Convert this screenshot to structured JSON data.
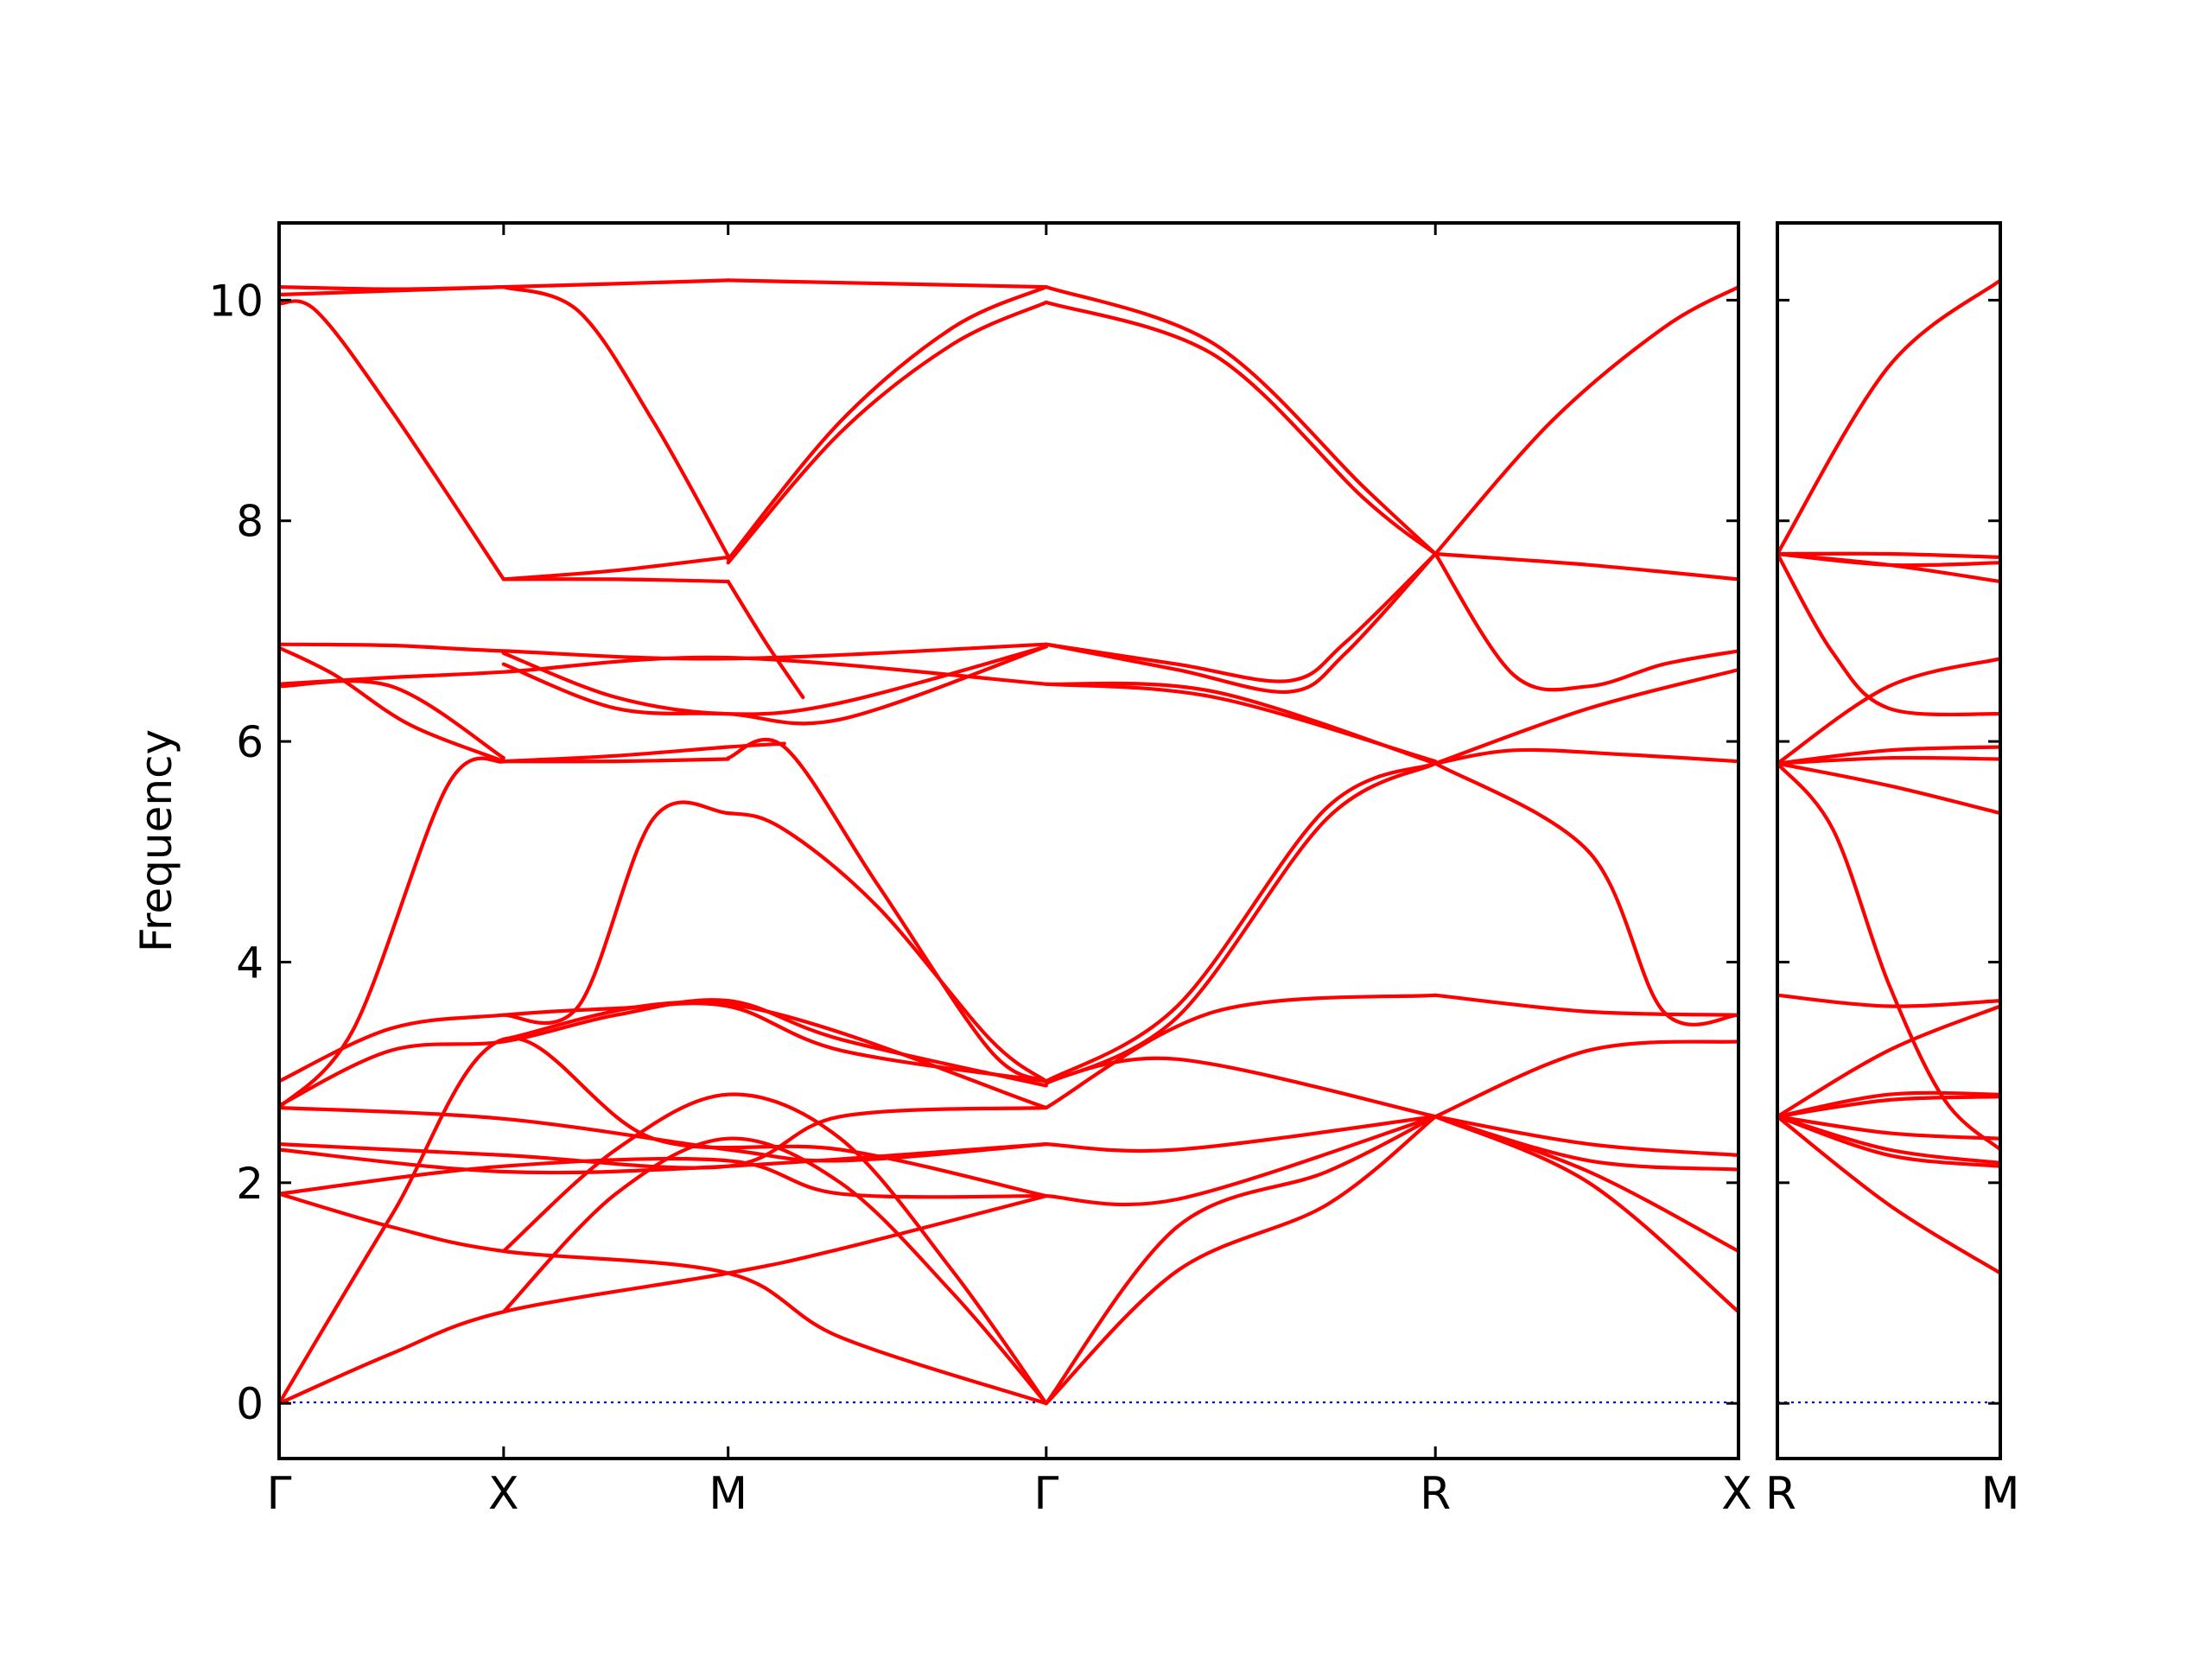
{
  "chart_data": {
    "type": "line",
    "ylabel": "Frequency",
    "ylim": [
      -0.5,
      10.7
    ],
    "yticks": [
      0,
      2,
      4,
      6,
      8,
      10
    ],
    "ytick_labels": [
      "0",
      "2",
      "4",
      "6",
      "8",
      "10"
    ],
    "grid": false,
    "legend": "none",
    "colors": {
      "bands": "#ff0000",
      "zero_line": "#0000cc",
      "axes": "#000000"
    },
    "panels": [
      {
        "name": "Γ-X-M-Γ-R-X",
        "xlim": [
          0,
          3.9
        ],
        "high_symmetry_points": [
          {
            "label": "Γ",
            "x": 0
          },
          {
            "label": "X",
            "x": 0.6
          },
          {
            "label": "M",
            "x": 1.2
          },
          {
            "label": "Γ",
            "x": 2.05
          },
          {
            "label": "R",
            "x": 3.09
          },
          {
            "label": "X",
            "x": 3.9
          }
        ],
        "bands": [
          {
            "x": [
              0,
              0.3,
              0.6,
              1.2
            ],
            "y": [
              10.12,
              10.1,
              10.12,
              10.18
            ]
          },
          {
            "x": [
              1.2,
              2.05
            ],
            "y": [
              10.18,
              10.12
            ]
          },
          {
            "x": [
              0,
              0.6
            ],
            "y": [
              10.05,
              10.12
            ]
          },
          {
            "x": [
              0,
              0.1,
              0.3,
              0.6
            ],
            "y": [
              9.97,
              9.9,
              9.0,
              7.47
            ]
          },
          {
            "x": [
              0.6,
              0.8,
              1.0,
              1.2
            ],
            "y": [
              10.12,
              9.9,
              8.9,
              7.68
            ]
          },
          {
            "x": [
              1.2,
              1.5,
              1.8,
              2.05
            ],
            "y": [
              7.65,
              8.9,
              9.75,
              10.12
            ]
          },
          {
            "x": [
              1.2,
              1.5,
              1.8,
              2.05
            ],
            "y": [
              7.62,
              8.8,
              9.6,
              9.98
            ]
          },
          {
            "x": [
              2.05,
              2.5,
              2.9,
              3.09
            ],
            "y": [
              10.12,
              9.6,
              8.3,
              7.7
            ]
          },
          {
            "x": [
              2.05,
              2.5,
              2.9,
              3.09
            ],
            "y": [
              9.98,
              9.5,
              8.2,
              7.7
            ]
          },
          {
            "x": [
              3.09,
              3.4,
              3.7,
              3.9
            ],
            "y": [
              7.7,
              8.9,
              9.75,
              10.12
            ]
          },
          {
            "x": [
              0.6,
              0.9,
              1.2
            ],
            "y": [
              7.47,
              7.55,
              7.67
            ]
          },
          {
            "x": [
              0.6,
              0.9,
              1.2
            ],
            "y": [
              7.47,
              7.47,
              7.45
            ]
          },
          {
            "x": [
              3.09,
              3.5,
              3.9
            ],
            "y": [
              7.7,
              7.6,
              7.47
            ]
          },
          {
            "x": [
              3.09,
              3.3,
              3.5,
              3.7,
              3.9
            ],
            "y": [
              7.7,
              6.6,
              6.5,
              6.7,
              6.82
            ]
          },
          {
            "x": [
              1.2,
              1.3,
              1.4
            ],
            "y": [
              7.45,
              6.9,
              6.4
            ]
          },
          {
            "x": [
              0,
              0.3,
              0.6,
              1.2,
              2.05
            ],
            "y": [
              6.88,
              6.87,
              6.82,
              6.75,
              6.88
            ]
          },
          {
            "x": [
              2.05,
              2.4,
              2.7,
              2.85,
              3.09
            ],
            "y": [
              6.88,
              6.7,
              6.55,
              6.9,
              7.7
            ]
          },
          {
            "x": [
              2.05,
              2.4,
              2.7,
              2.85,
              3.09
            ],
            "y": [
              6.88,
              6.65,
              6.45,
              6.8,
              7.7
            ]
          },
          {
            "x": [
              0,
              0.3,
              0.6,
              1.2,
              2.05
            ],
            "y": [
              6.52,
              6.58,
              6.63,
              6.76,
              6.52
            ]
          },
          {
            "x": [
              0,
              0.15,
              0.35,
              0.6
            ],
            "y": [
              6.85,
              6.6,
              6.15,
              5.82
            ]
          },
          {
            "x": [
              0,
              0.3,
              0.6
            ],
            "y": [
              6.5,
              6.5,
              5.85
            ]
          },
          {
            "x": [
              0.6,
              0.9,
              1.2,
              1.5,
              2.05
            ],
            "y": [
              6.8,
              6.4,
              6.25,
              6.35,
              6.86
            ]
          },
          {
            "x": [
              0.6,
              0.9,
              1.2,
              1.5,
              2.05
            ],
            "y": [
              6.7,
              6.3,
              6.25,
              6.2,
              6.86
            ]
          },
          {
            "x": [
              2.05,
              2.5,
              3.09
            ],
            "y": [
              6.52,
              6.4,
              5.82
            ]
          },
          {
            "x": [
              2.05,
              2.5,
              3.09
            ],
            "y": [
              6.52,
              6.45,
              5.8
            ]
          },
          {
            "x": [
              3.09,
              3.5,
              3.9
            ],
            "y": [
              5.8,
              6.3,
              6.65
            ]
          },
          {
            "x": [
              3.09,
              3.3,
              3.6,
              3.9
            ],
            "y": [
              5.8,
              5.92,
              5.88,
              5.82
            ]
          },
          {
            "x": [
              0,
              0.2,
              0.45,
              0.6
            ],
            "y": [
              2.68,
              3.4,
              5.6,
              5.82
            ]
          },
          {
            "x": [
              0.6,
              0.9,
              1.2,
              1.35
            ],
            "y": [
              5.82,
              5.87,
              5.95,
              5.98
            ]
          },
          {
            "x": [
              0.6,
              0.9,
              1.2
            ],
            "y": [
              5.82,
              5.82,
              5.84
            ]
          },
          {
            "x": [
              1.2,
              1.35,
              1.6,
              1.9,
              2.05
            ],
            "y": [
              5.85,
              5.95,
              4.7,
              3.2,
              2.92
            ]
          },
          {
            "x": [
              0.6,
              0.8,
              1.0,
              1.2,
              1.35,
              1.6,
              1.9,
              2.05
            ],
            "y": [
              3.52,
              3.6,
              5.3,
              5.35,
              5.2,
              4.5,
              3.3,
              2.92
            ]
          },
          {
            "x": [
              2.05,
              2.4,
              2.8,
              3.09
            ],
            "y": [
              2.92,
              3.6,
              5.4,
              5.8
            ]
          },
          {
            "x": [
              2.05,
              2.4,
              2.8,
              3.09
            ],
            "y": [
              2.9,
              3.5,
              5.3,
              5.8
            ]
          },
          {
            "x": [
              3.09,
              3.5,
              3.7,
              3.9
            ],
            "y": [
              5.8,
              5.0,
              3.55,
              3.52
            ]
          },
          {
            "x": [
              0,
              0.3,
              0.6,
              0.9,
              1.2,
              1.5,
              2.05
            ],
            "y": [
              2.92,
              3.4,
              3.52,
              3.58,
              3.6,
              3.2,
              2.92
            ]
          },
          {
            "x": [
              0,
              0.3,
              0.6,
              0.9,
              1.2,
              1.5,
              2.05
            ],
            "y": [
              2.7,
              3.2,
              3.28,
              3.52,
              3.65,
              3.3,
              2.88
            ]
          },
          {
            "x": [
              0.6,
              1.2,
              2.05
            ],
            "y": [
              3.3,
              3.62,
              2.68
            ]
          },
          {
            "x": [
              2.05,
              2.5,
              3.09
            ],
            "y": [
              2.68,
              3.55,
              3.7
            ]
          },
          {
            "x": [
              3.09,
              3.5,
              3.9
            ],
            "y": [
              3.7,
              3.55,
              3.52
            ]
          },
          {
            "x": [
              2.05,
              2.4,
              3.09
            ],
            "y": [
              2.92,
              3.12,
              2.6
            ]
          },
          {
            "x": [
              3.09,
              3.5,
              3.9
            ],
            "y": [
              2.6,
              3.2,
              3.28
            ]
          },
          {
            "x": [
              0,
              0.6,
              1.2,
              1.5,
              2.05
            ],
            "y": [
              2.68,
              2.58,
              2.3,
              2.2,
              2.35
            ]
          },
          {
            "x": [
              0,
              0.6,
              1.2,
              1.5,
              2.05
            ],
            "y": [
              2.35,
              2.25,
              2.15,
              2.6,
              2.68
            ]
          },
          {
            "x": [
              0,
              0.6,
              1.2,
              2.05
            ],
            "y": [
              2.3,
              2.1,
              2.15,
              2.35
            ]
          },
          {
            "x": [
              0,
              0.6,
              1.2,
              1.5,
              2.05
            ],
            "y": [
              1.9,
              2.15,
              2.2,
              1.9,
              1.88
            ]
          },
          {
            "x": [
              2.05,
              2.4,
              3.09
            ],
            "y": [
              2.35,
              2.3,
              2.6
            ]
          },
          {
            "x": [
              2.05,
              2.4,
              3.09
            ],
            "y": [
              1.88,
              1.85,
              2.6
            ]
          },
          {
            "x": [
              3.09,
              3.5,
              3.9
            ],
            "y": [
              2.6,
              2.35,
              2.25
            ]
          },
          {
            "x": [
              3.09,
              3.5,
              3.9
            ],
            "y": [
              2.6,
              2.2,
              2.12
            ]
          },
          {
            "x": [
              0,
              0.3,
              0.6,
              1.2,
              1.5,
              2.05
            ],
            "y": [
              1.9,
              1.6,
              1.38,
              1.18,
              0.6,
              0.0
            ]
          },
          {
            "x": [
              0,
              0.3,
              0.6,
              1.2,
              1.5,
              2.05
            ],
            "y": [
              0.0,
              0.45,
              0.83,
              1.18,
              1.4,
              1.88
            ]
          },
          {
            "x": [
              0,
              0.3,
              0.6,
              1.0,
              1.5,
              2.05
            ],
            "y": [
              0.0,
              1.7,
              3.3,
              2.4,
              2.3,
              1.88
            ]
          },
          {
            "x": [
              0.6,
              0.9,
              1.2,
              1.5,
              1.8,
              2.05
            ],
            "y": [
              1.38,
              2.3,
              2.8,
              2.4,
              1.2,
              0.0
            ]
          },
          {
            "x": [
              0.6,
              0.9,
              1.2,
              1.5,
              1.8,
              2.05
            ],
            "y": [
              0.83,
              1.9,
              2.4,
              2.0,
              1.0,
              0.0
            ]
          },
          {
            "x": [
              2.05,
              2.4,
              2.8,
              3.09
            ],
            "y": [
              0.0,
              1.6,
              2.1,
              2.6
            ]
          },
          {
            "x": [
              2.05,
              2.4,
              2.8,
              3.09
            ],
            "y": [
              0.0,
              1.2,
              1.8,
              2.6
            ]
          },
          {
            "x": [
              3.09,
              3.5,
              3.9
            ],
            "y": [
              2.6,
              2.1,
              1.38
            ]
          },
          {
            "x": [
              3.09,
              3.5,
              3.9
            ],
            "y": [
              2.6,
              2.0,
              0.83
            ]
          }
        ]
      },
      {
        "name": "R-M",
        "xlim": [
          0,
          0.6
        ],
        "high_symmetry_points": [
          {
            "label": "R",
            "x": 0
          },
          {
            "label": "M",
            "x": 0.6
          }
        ],
        "bands": [
          {
            "x": [
              0,
              0.3,
              0.6
            ],
            "y": [
              7.7,
              9.4,
              10.18
            ]
          },
          {
            "x": [
              0,
              0.3,
              0.6
            ],
            "y": [
              7.7,
              7.7,
              7.67
            ]
          },
          {
            "x": [
              0,
              0.3,
              0.6
            ],
            "y": [
              7.7,
              7.6,
              7.62
            ]
          },
          {
            "x": [
              0,
              0.3,
              0.6
            ],
            "y": [
              7.7,
              7.6,
              7.45
            ]
          },
          {
            "x": [
              0,
              0.15,
              0.3,
              0.6
            ],
            "y": [
              7.7,
              6.8,
              6.3,
              6.25
            ]
          },
          {
            "x": [
              0,
              0.3,
              0.6
            ],
            "y": [
              5.8,
              6.5,
              6.75
            ]
          },
          {
            "x": [
              0,
              0.3,
              0.6
            ],
            "y": [
              5.8,
              5.92,
              5.95
            ]
          },
          {
            "x": [
              0,
              0.3,
              0.6
            ],
            "y": [
              5.8,
              5.85,
              5.84
            ]
          },
          {
            "x": [
              0,
              0.3,
              0.6
            ],
            "y": [
              5.8,
              5.6,
              5.35
            ]
          },
          {
            "x": [
              0,
              0.15,
              0.3,
              0.45,
              0.6
            ],
            "y": [
              5.8,
              5.2,
              3.8,
              2.75,
              2.3
            ]
          },
          {
            "x": [
              0,
              0.3,
              0.6
            ],
            "y": [
              3.7,
              3.6,
              3.65
            ]
          },
          {
            "x": [
              0,
              0.3,
              0.6
            ],
            "y": [
              2.6,
              3.2,
              3.6
            ]
          },
          {
            "x": [
              0,
              0.3,
              0.6
            ],
            "y": [
              2.6,
              2.8,
              2.8
            ]
          },
          {
            "x": [
              0,
              0.3,
              0.6
            ],
            "y": [
              2.6,
              2.75,
              2.78
            ]
          },
          {
            "x": [
              0,
              0.3,
              0.6
            ],
            "y": [
              2.6,
              2.45,
              2.4
            ]
          },
          {
            "x": [
              0,
              0.3,
              0.6
            ],
            "y": [
              2.6,
              2.3,
              2.18
            ]
          },
          {
            "x": [
              0,
              0.3,
              0.6
            ],
            "y": [
              2.6,
              2.25,
              2.15
            ]
          },
          {
            "x": [
              0,
              0.3,
              0.6
            ],
            "y": [
              2.6,
              1.8,
              1.18
            ]
          }
        ]
      }
    ]
  }
}
